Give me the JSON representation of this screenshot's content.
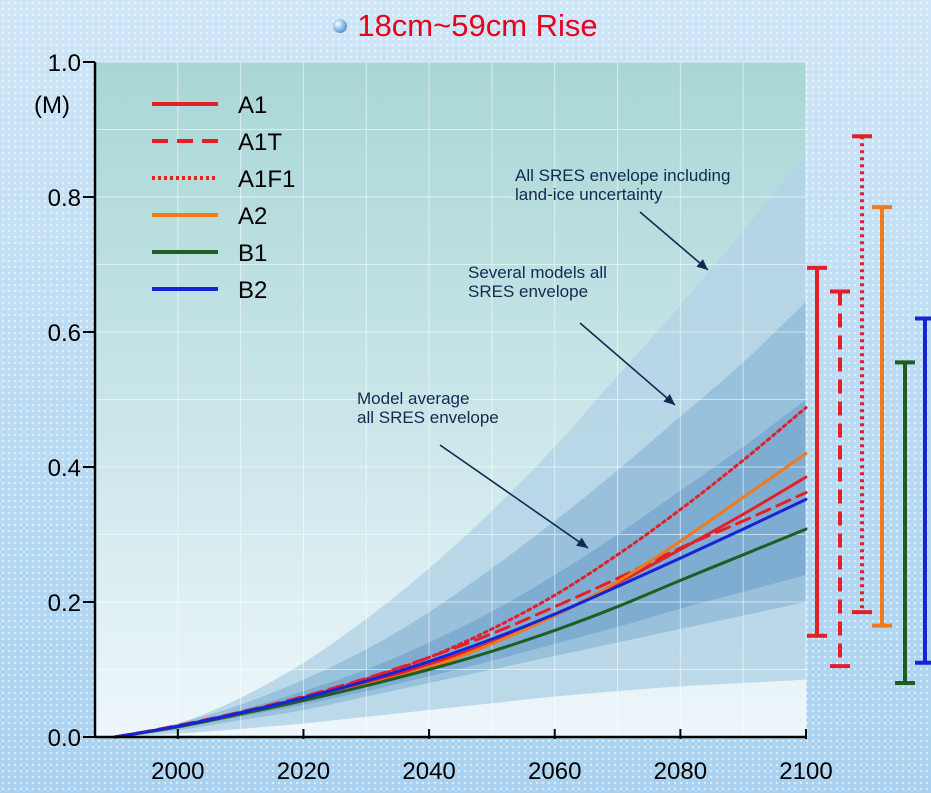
{
  "title": "18cm~59cm Rise",
  "chart_data": {
    "type": "line",
    "ylabel": "(M)",
    "xlim": [
      1990,
      2100
    ],
    "ylim": [
      0,
      1.0
    ],
    "x_ticks": [
      "2000",
      "2020",
      "2040",
      "2060",
      "2080",
      "2100"
    ],
    "y_ticks": [
      "0.0",
      "0.2",
      "0.4",
      "0.6",
      "0.8",
      "1.0"
    ],
    "grid": true,
    "legend_position": "top-left",
    "x": [
      1990,
      2000,
      2010,
      2020,
      2030,
      2040,
      2050,
      2060,
      2070,
      2080,
      2090,
      2100
    ],
    "series": [
      {
        "name": "A1",
        "color": "#e2202a",
        "dash": "solid",
        "values": [
          0,
          0.016,
          0.035,
          0.056,
          0.08,
          0.108,
          0.14,
          0.18,
          0.228,
          0.278,
          0.33,
          0.385
        ]
      },
      {
        "name": "A1T",
        "color": "#e2202a",
        "dash": "dashed",
        "values": [
          0,
          0.017,
          0.037,
          0.06,
          0.087,
          0.118,
          0.153,
          0.193,
          0.235,
          0.28,
          0.32,
          0.362
        ]
      },
      {
        "name": "A1F1",
        "color": "#e2202a",
        "dash": "dotted",
        "values": [
          0,
          0.016,
          0.036,
          0.059,
          0.086,
          0.118,
          0.16,
          0.21,
          0.27,
          0.337,
          0.41,
          0.488
        ]
      },
      {
        "name": "A2",
        "color": "#f07a1c",
        "dash": "solid",
        "values": [
          0,
          0.015,
          0.034,
          0.054,
          0.077,
          0.103,
          0.138,
          0.18,
          0.23,
          0.29,
          0.355,
          0.42
        ]
      },
      {
        "name": "B1",
        "color": "#1e5e22",
        "dash": "solid",
        "values": [
          0,
          0.015,
          0.034,
          0.054,
          0.076,
          0.1,
          0.127,
          0.158,
          0.193,
          0.232,
          0.27,
          0.308
        ]
      },
      {
        "name": "B2",
        "color": "#1424d8",
        "dash": "solid",
        "values": [
          0,
          0.016,
          0.036,
          0.058,
          0.083,
          0.112,
          0.145,
          0.182,
          0.223,
          0.265,
          0.308,
          0.352
        ]
      }
    ],
    "envelopes": [
      {
        "label": "All SRES envelope including\nland-ice uncertainty",
        "color": "#b4d3e6",
        "lower": [
          0,
          0.005,
          0.012,
          0.02,
          0.03,
          0.04,
          0.05,
          0.06,
          0.068,
          0.075,
          0.08,
          0.085
        ],
        "upper": [
          0,
          0.02,
          0.058,
          0.11,
          0.175,
          0.25,
          0.335,
          0.43,
          0.535,
          0.64,
          0.75,
          0.865
        ]
      },
      {
        "label": "Several models all\nSRES envelope",
        "color": "#93bdd9",
        "lower": [
          0,
          0.01,
          0.025,
          0.04,
          0.06,
          0.08,
          0.1,
          0.12,
          0.14,
          0.16,
          0.18,
          0.2
        ],
        "upper": [
          0,
          0.02,
          0.048,
          0.085,
          0.13,
          0.185,
          0.25,
          0.32,
          0.395,
          0.475,
          0.555,
          0.645
        ]
      },
      {
        "label": "Model average\nall SRES envelope",
        "color": "#7aa9cf",
        "lower": [
          0,
          0.013,
          0.03,
          0.048,
          0.068,
          0.09,
          0.113,
          0.138,
          0.163,
          0.19,
          0.215,
          0.24
        ],
        "upper": [
          0,
          0.018,
          0.04,
          0.068,
          0.1,
          0.14,
          0.186,
          0.24,
          0.3,
          0.365,
          0.43,
          0.5
        ]
      }
    ],
    "range_bars": [
      {
        "name": "A1",
        "color": "#e2202a",
        "dash": "solid",
        "low": 0.15,
        "high": 0.695
      },
      {
        "name": "A1T",
        "color": "#e2202a",
        "dash": "dashed",
        "low": 0.105,
        "high": 0.66
      },
      {
        "name": "A1F1",
        "color": "#e2202a",
        "dash": "dotted",
        "low": 0.185,
        "high": 0.89
      },
      {
        "name": "A2",
        "color": "#f07a1c",
        "dash": "solid",
        "low": 0.165,
        "high": 0.785
      },
      {
        "name": "B1",
        "color": "#1e5e22",
        "dash": "solid",
        "low": 0.08,
        "high": 0.555
      },
      {
        "name": "B2",
        "color": "#1424d8",
        "dash": "solid",
        "low": 0.11,
        "high": 0.62
      }
    ]
  }
}
